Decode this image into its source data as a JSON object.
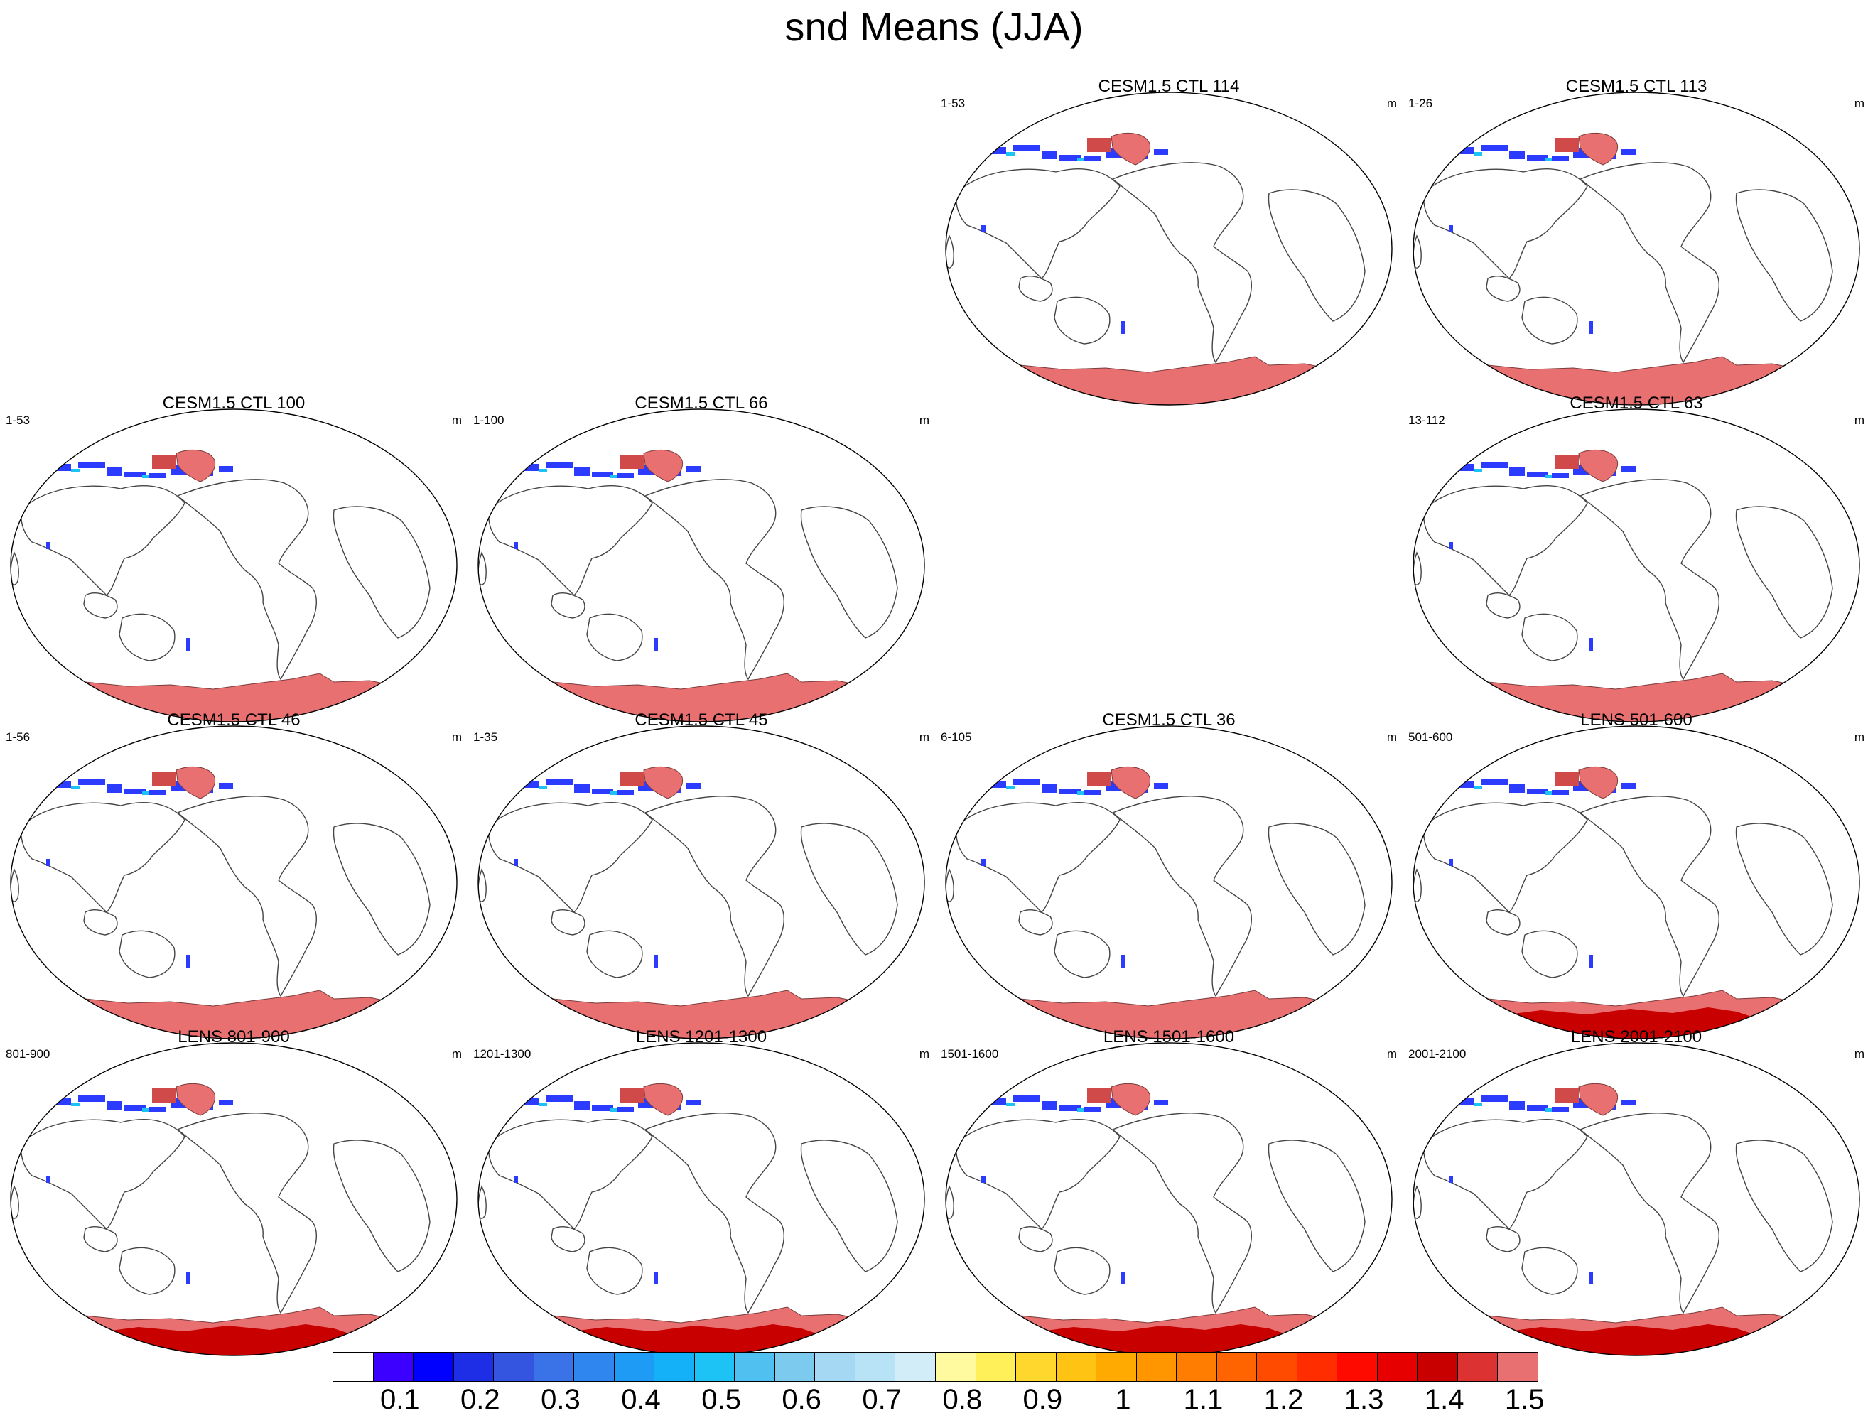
{
  "title": "snd Means (JJA)",
  "units": "m",
  "panels": [
    {
      "title": "CESM1.5 CTL 114",
      "years": "1-53"
    },
    {
      "title": "CESM1.5 CTL 113",
      "years": "1-26"
    },
    {
      "title": "CESM1.5 CTL 100",
      "years": "1-53"
    },
    {
      "title": "CESM1.5 CTL 66",
      "years": "1-100"
    },
    {
      "title": "CESM1.5 CTL 63",
      "years": "13-112"
    },
    {
      "title": "CESM1.5 CTL 46",
      "years": "1-56"
    },
    {
      "title": "CESM1.5 CTL 45",
      "years": "1-35"
    },
    {
      "title": "CESM1.5 CTL 36",
      "years": "6-105"
    },
    {
      "title": "LENS 501-600",
      "years": "501-600"
    },
    {
      "title": "LENS 801-900",
      "years": "801-900"
    },
    {
      "title": "LENS 1201-1300",
      "years": "1201-1300"
    },
    {
      "title": "LENS 1501-1600",
      "years": "1501-1600"
    },
    {
      "title": "LENS 2001-2100",
      "years": "2001-2100"
    }
  ],
  "colorbar": {
    "colors": [
      "#ffffff",
      "#3b00ff",
      "#0000ff",
      "#1e2ee6",
      "#3355e0",
      "#3a72e8",
      "#2f86ee",
      "#1e9bf5",
      "#14b0f8",
      "#1ec3f6",
      "#4fc0f0",
      "#7ccbef",
      "#a5d8f2",
      "#b8e2f6",
      "#d2ecf8",
      "#fffaa0",
      "#fff05a",
      "#ffd72d",
      "#ffc314",
      "#ffaa00",
      "#ff9600",
      "#ff7d00",
      "#ff6400",
      "#ff4b00",
      "#ff2d00",
      "#ff0a00",
      "#e60000",
      "#c80000",
      "#dc3232",
      "#e87070"
    ],
    "labels": [
      "0.1",
      "0.2",
      "0.3",
      "0.4",
      "0.5",
      "0.6",
      "0.7",
      "0.8",
      "0.9",
      "1",
      "1.1",
      "1.2",
      "1.3",
      "1.4",
      "1.5"
    ]
  }
}
